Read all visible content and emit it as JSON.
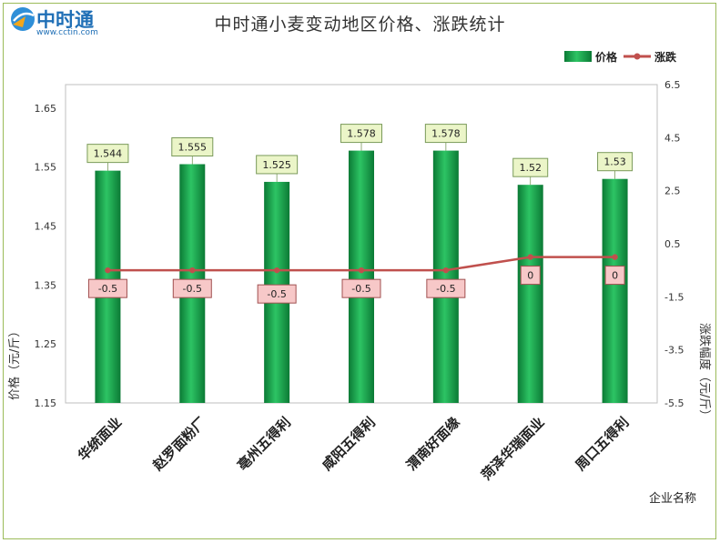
{
  "brand": {
    "name": "中时通",
    "url": "www.cctin.com"
  },
  "chart_data": {
    "type": "bar",
    "title": "中时通小麦变动地区价格、涨跌统计",
    "categories": [
      "华统面业",
      "赵罗面粉厂",
      "亳州五得利",
      "咸阳五得利",
      "渭南好面缘",
      "菏泽华瑞面业",
      "周口五得利"
    ],
    "series": [
      {
        "name": "价格",
        "type": "bar",
        "axis": "left",
        "values": [
          1.544,
          1.555,
          1.525,
          1.578,
          1.578,
          1.52,
          1.53
        ],
        "color": "#1aa04a"
      },
      {
        "name": "涨跌",
        "type": "line",
        "axis": "right",
        "values": [
          -0.5,
          -0.5,
          -0.5,
          -0.5,
          -0.5,
          0,
          0
        ],
        "color": "#c0504d"
      }
    ],
    "y_left": {
      "label": "价格（元/斤）",
      "ticks": [
        "1.15",
        "1.25",
        "1.35",
        "1.45",
        "1.55",
        "1.65"
      ],
      "range": [
        1.15,
        1.69
      ]
    },
    "y_right": {
      "label": "涨跌幅度（元/斤）",
      "ticks": [
        "-5.5",
        "-3.5",
        "-1.5",
        "0.5",
        "2.5",
        "4.5",
        "6.5"
      ],
      "range": [
        -5.5,
        6.5
      ]
    },
    "x_label": "企业名称",
    "legend": {
      "position": "top-right"
    }
  }
}
